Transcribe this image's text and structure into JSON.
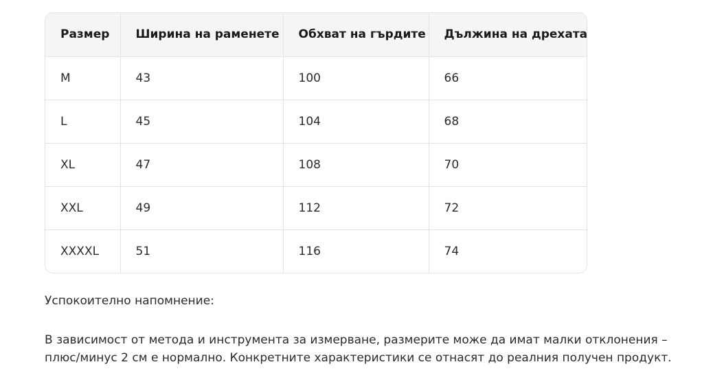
{
  "table": {
    "headers": [
      "Размер",
      "Ширина на раменете",
      "Обхват на гърдите",
      "Дължина на дрехата"
    ],
    "rows": [
      [
        "M",
        "43",
        "100",
        "66"
      ],
      [
        "L",
        "45",
        "104",
        "68"
      ],
      [
        "XL",
        "47",
        "108",
        "70"
      ],
      [
        "XXL",
        "49",
        "112",
        "72"
      ],
      [
        "XXXXL",
        "51",
        "116",
        "74"
      ]
    ]
  },
  "note": {
    "title": "Успокоително напомнение:",
    "body": "В зависимост от метода и инструмента за измерване, размерите може да имат малки отклонения – плюс/минус 2 см е нормално. Конкретните характеристики се отнасят до реалния получен продукт."
  },
  "colors": {
    "header_bg": "#f5f5f5",
    "border": "#e3e3e3",
    "text": "#2a2a2a"
  }
}
